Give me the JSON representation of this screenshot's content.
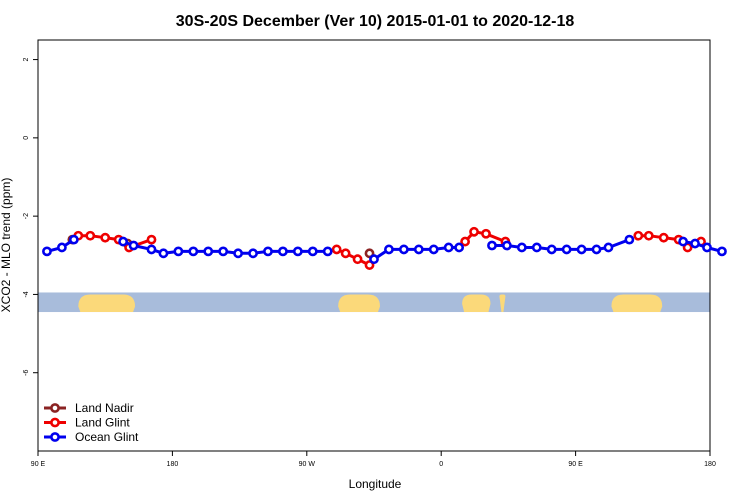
{
  "chart_data": {
    "type": "line",
    "title": "30S-20S December (Ver 10)   2015-01-01 to 2020-12-18",
    "xlabel": "Longitude",
    "ylabel": "XCO2 - MLO trend (ppm)",
    "x_axis": {
      "range": [
        90,
        540
      ],
      "ticks": [
        {
          "value": 90,
          "label": "90 E"
        },
        {
          "value": 180,
          "label": "180"
        },
        {
          "value": 270,
          "label": "90 W"
        },
        {
          "value": 360,
          "label": "0"
        },
        {
          "value": 450,
          "label": "90 E"
        },
        {
          "value": 540,
          "label": "180"
        }
      ]
    },
    "y_axis": {
      "range": [
        -8,
        2.5
      ],
      "ticks": [
        {
          "value": 2,
          "label": "2"
        },
        {
          "value": 0,
          "label": "0"
        },
        {
          "value": -2,
          "label": "-2"
        },
        {
          "value": -4,
          "label": "-4"
        },
        {
          "value": -6,
          "label": "-6"
        }
      ]
    },
    "grid": false,
    "legend_position": "bottom-left",
    "land_ocean_strip": {
      "y_range": [
        -4.45,
        -3.95
      ],
      "ocean_color": "#a8bcdb",
      "land_color": "#fbd97a",
      "land_segments": [
        [
          117,
          155
        ],
        [
          291,
          319
        ],
        [
          374,
          393
        ],
        [
          399,
          403
        ],
        [
          474,
          508
        ]
      ]
    },
    "series": [
      {
        "name": "Land Nadir",
        "color": "#8b2323",
        "points": [
          [
            113,
            -2.6
          ],
          [
            150,
            -2.7
          ],
          [
            312,
            -2.95
          ]
        ]
      },
      {
        "name": "Land Glint",
        "color": "#ee0000",
        "points": [
          [
            117,
            -2.5
          ],
          [
            125,
            -2.5
          ],
          [
            135,
            -2.55
          ],
          [
            144,
            -2.6
          ],
          [
            151,
            -2.8
          ],
          [
            166,
            -2.6
          ],
          [
            290,
            -2.85
          ],
          [
            296,
            -2.95
          ],
          [
            304,
            -3.1
          ],
          [
            312,
            -3.25
          ],
          [
            376,
            -2.65
          ],
          [
            382,
            -2.4
          ],
          [
            390,
            -2.45
          ],
          [
            403,
            -2.65
          ],
          [
            492,
            -2.5
          ],
          [
            499,
            -2.5
          ],
          [
            509,
            -2.55
          ],
          [
            519,
            -2.6
          ],
          [
            525,
            -2.8
          ],
          [
            534,
            -2.65
          ]
        ]
      },
      {
        "name": "Ocean Glint",
        "color": "#0000ee",
        "points": [
          [
            96,
            -2.9
          ],
          [
            106,
            -2.8
          ],
          [
            114,
            -2.6
          ],
          [
            147,
            -2.65
          ],
          [
            154,
            -2.75
          ],
          [
            166,
            -2.85
          ],
          [
            174,
            -2.95
          ],
          [
            184,
            -2.9
          ],
          [
            194,
            -2.9
          ],
          [
            204,
            -2.9
          ],
          [
            214,
            -2.9
          ],
          [
            224,
            -2.95
          ],
          [
            234,
            -2.95
          ],
          [
            244,
            -2.9
          ],
          [
            254,
            -2.9
          ],
          [
            264,
            -2.9
          ],
          [
            274,
            -2.9
          ],
          [
            284,
            -2.9
          ],
          [
            315,
            -3.1
          ],
          [
            325,
            -2.85
          ],
          [
            335,
            -2.85
          ],
          [
            345,
            -2.85
          ],
          [
            355,
            -2.85
          ],
          [
            365,
            -2.8
          ],
          [
            372,
            -2.8
          ],
          [
            394,
            -2.75
          ],
          [
            404,
            -2.75
          ],
          [
            414,
            -2.8
          ],
          [
            424,
            -2.8
          ],
          [
            434,
            -2.85
          ],
          [
            444,
            -2.85
          ],
          [
            454,
            -2.85
          ],
          [
            464,
            -2.85
          ],
          [
            472,
            -2.8
          ],
          [
            486,
            -2.6
          ],
          [
            522,
            -2.65
          ],
          [
            530,
            -2.7
          ],
          [
            538,
            -2.8
          ],
          [
            548,
            -2.9
          ]
        ]
      }
    ]
  }
}
